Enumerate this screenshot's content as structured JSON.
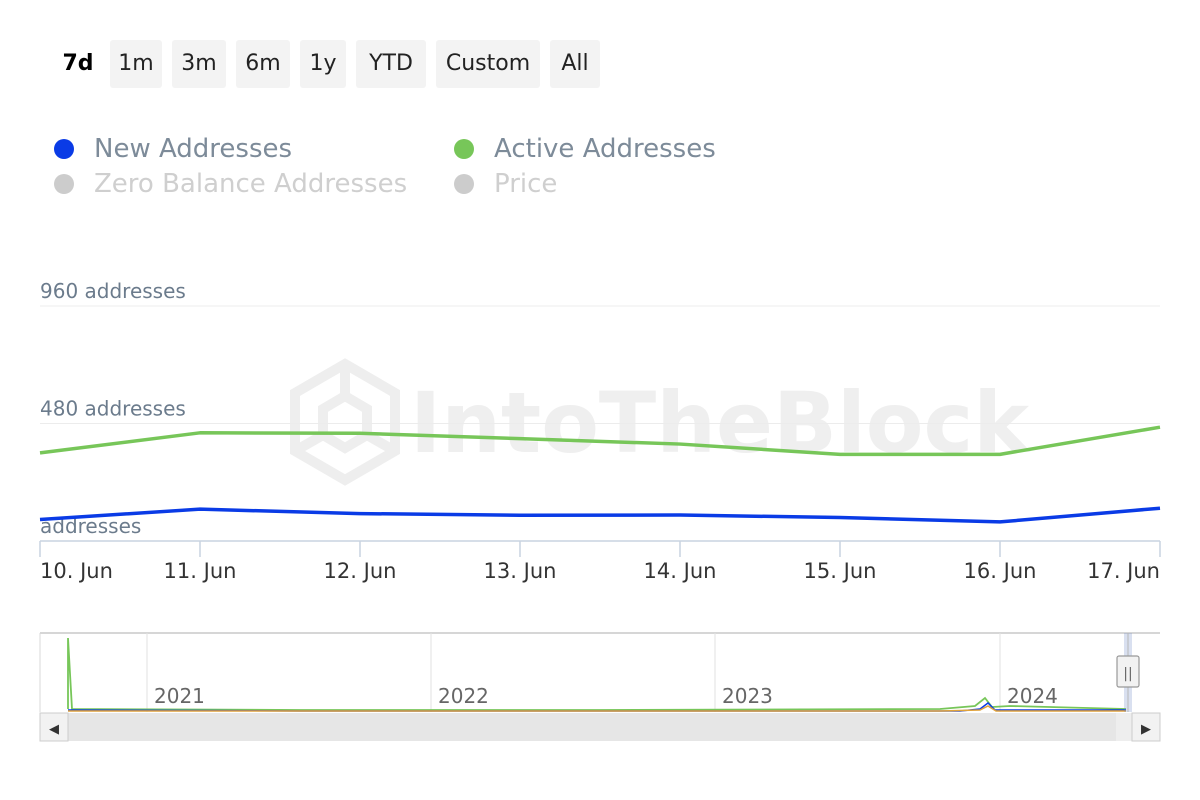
{
  "range_selector": {
    "buttons": [
      "7d",
      "1m",
      "3m",
      "6m",
      "1y",
      "YTD",
      "Custom",
      "All"
    ],
    "selected": "7d"
  },
  "watermark": "IntoTheBlock",
  "colors": {
    "new_addresses": "#0a3be6",
    "active_addresses": "#77c659",
    "hidden_series": "#cccccc",
    "navigator_price": "#e0a23a"
  },
  "chart_data": {
    "type": "line",
    "categories": [
      "10. Jun",
      "11. Jun",
      "12. Jun",
      "13. Jun",
      "14. Jun",
      "15. Jun",
      "16. Jun",
      "17. Jun"
    ],
    "y_tick_labels": [
      "960 addresses",
      "480 addresses",
      "addresses"
    ],
    "y_ticks": [
      960,
      480,
      0
    ],
    "ylim": [
      0,
      960
    ],
    "grid": true,
    "legend_position": "top-left",
    "series": [
      {
        "name": "New Addresses",
        "visible": true,
        "values": [
          88,
          130,
          112,
          105,
          106,
          96,
          78,
          134
        ]
      },
      {
        "name": "Active Addresses",
        "visible": true,
        "values": [
          360,
          442,
          440,
          418,
          396,
          354,
          354,
          465
        ]
      },
      {
        "name": "Zero Balance Addresses",
        "visible": false
      },
      {
        "name": "Price",
        "visible": false
      }
    ],
    "navigator": {
      "year_labels": [
        "2021",
        "2022",
        "2023",
        "2024"
      ]
    }
  },
  "scroll_icons": {
    "left": "◀",
    "right": "▶",
    "handle": "||"
  }
}
